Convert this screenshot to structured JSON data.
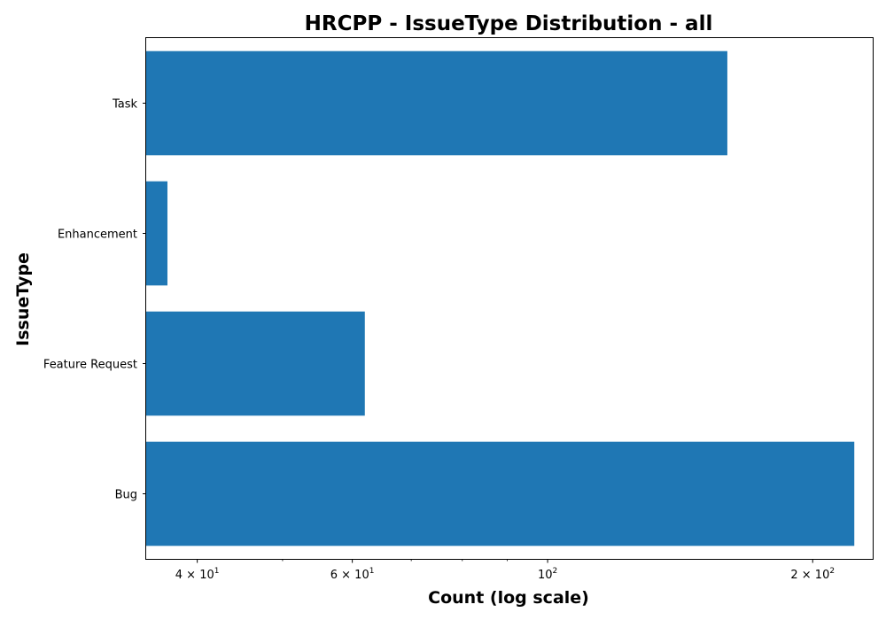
{
  "chart_data": {
    "type": "bar",
    "orientation": "horizontal",
    "title": "HRCPP - IssueType Distribution - all",
    "xlabel": "Count (log scale)",
    "ylabel": "IssueType",
    "x_scale": "log",
    "xlim": [
      35,
      234
    ],
    "categories": [
      "Bug",
      "Feature Request",
      "Enhancement",
      "Task"
    ],
    "values": [
      223,
      62,
      37,
      160
    ],
    "x_ticks": [
      {
        "value": 40,
        "mantissa": "4",
        "base": "10",
        "exponent": "1"
      },
      {
        "value": 60,
        "mantissa": "6",
        "base": "10",
        "exponent": "1"
      },
      {
        "value": 100,
        "mantissa": "",
        "base": "10",
        "exponent": "2"
      },
      {
        "value": 200,
        "mantissa": "2",
        "base": "10",
        "exponent": "2"
      }
    ],
    "x_minor_ticks": [
      50,
      70,
      80,
      90
    ],
    "bar_color": "#1f77b4",
    "grid": false,
    "legend": "none"
  }
}
